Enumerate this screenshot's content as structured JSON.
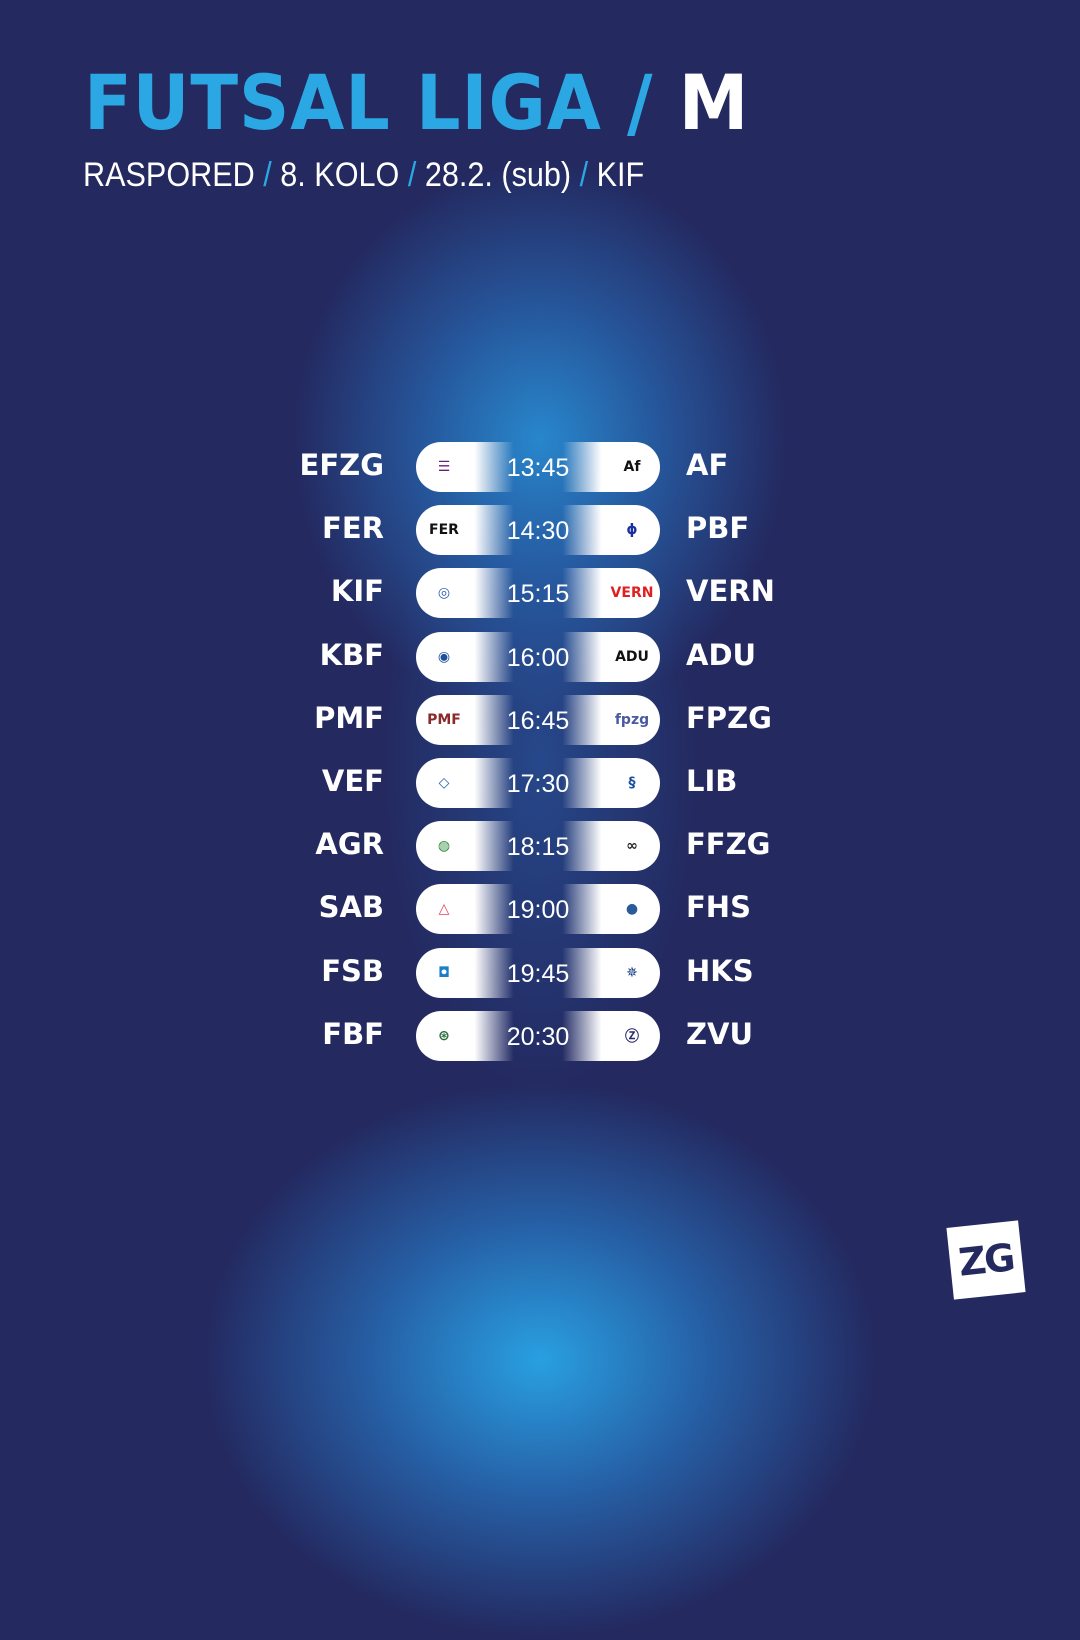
{
  "header": {
    "title_main": "FUTSAL LIGA /",
    "title_gender": "M",
    "subtitle": [
      "RASPORED",
      "8. KOLO",
      "28.2. (sub)",
      "KIF"
    ],
    "separator": "/"
  },
  "colors": {
    "background": "#242960",
    "accent": "#2ba8e4",
    "text": "#ffffff"
  },
  "matches": [
    {
      "home": "EFZG",
      "time": "13:45",
      "away": "AF",
      "home_logo": {
        "glyph": "☰",
        "color": "#6a1a7a"
      },
      "away_logo": {
        "glyph": "Af",
        "color": "#111111"
      }
    },
    {
      "home": "FER",
      "time": "14:30",
      "away": "PBF",
      "home_logo": {
        "glyph": "FER",
        "color": "#111111"
      },
      "away_logo": {
        "glyph": "ϕ",
        "color": "#1a2fa0"
      }
    },
    {
      "home": "KIF",
      "time": "15:15",
      "away": "VERN",
      "home_logo": {
        "glyph": "◎",
        "color": "#2a5fb0"
      },
      "away_logo": {
        "glyph": "VERN",
        "color": "#e02020"
      }
    },
    {
      "home": "KBF",
      "time": "16:00",
      "away": "ADU",
      "home_logo": {
        "glyph": "◉",
        "color": "#1e4f9a"
      },
      "away_logo": {
        "glyph": "ADU",
        "color": "#111111"
      }
    },
    {
      "home": "PMF",
      "time": "16:45",
      "away": "FPZG",
      "home_logo": {
        "glyph": "PMF",
        "color": "#8a2a2a"
      },
      "away_logo": {
        "glyph": "fpzg",
        "color": "#4a5aa0"
      }
    },
    {
      "home": "VEF",
      "time": "17:30",
      "away": "LIB",
      "home_logo": {
        "glyph": "◇",
        "color": "#1e5fb0"
      },
      "away_logo": {
        "glyph": "§",
        "color": "#1a4fa0"
      }
    },
    {
      "home": "AGR",
      "time": "18:15",
      "away": "FFZG",
      "home_logo": {
        "glyph": "◍",
        "color": "#2a8a3a"
      },
      "away_logo": {
        "glyph": "∞",
        "color": "#222222"
      }
    },
    {
      "home": "SAB",
      "time": "19:00",
      "away": "FHS",
      "home_logo": {
        "glyph": "△",
        "color": "#e04060"
      },
      "away_logo": {
        "glyph": "●",
        "color": "#2a5a9a"
      }
    },
    {
      "home": "FSB",
      "time": "19:45",
      "away": "HKS",
      "home_logo": {
        "glyph": "◘",
        "color": "#1a7fc8"
      },
      "away_logo": {
        "glyph": "✵",
        "color": "#1a3f8a"
      }
    },
    {
      "home": "FBF",
      "time": "20:30",
      "away": "ZVU",
      "home_logo": {
        "glyph": "⊛",
        "color": "#2a6a3a"
      },
      "away_logo": {
        "glyph": "Ⓩ",
        "color": "#2a2a6a"
      }
    }
  ],
  "brand_logo": {
    "text": "ZG",
    "icon": "zg-logo"
  }
}
